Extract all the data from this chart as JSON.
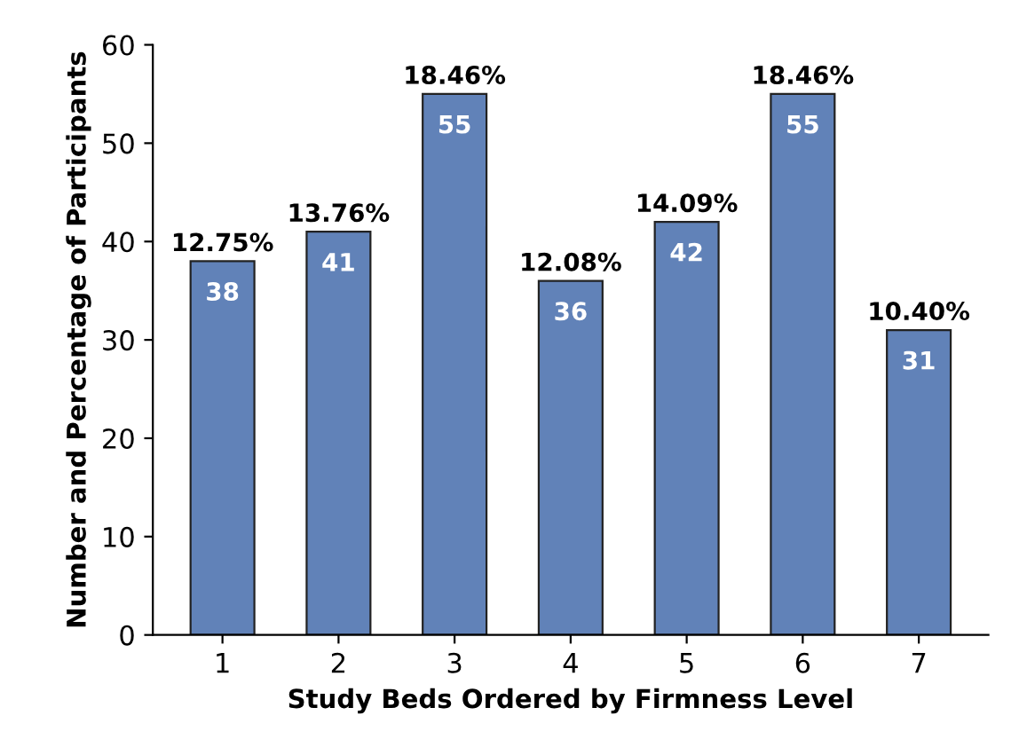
{
  "chart_data": {
    "type": "bar",
    "xlabel": "Study Beds Ordered by Firmness Level",
    "ylabel": "Number and Percentage of Participants",
    "categories": [
      "1",
      "2",
      "3",
      "4",
      "5",
      "6",
      "7"
    ],
    "values": [
      38,
      41,
      55,
      36,
      42,
      55,
      31
    ],
    "color": "#6182b8",
    "ylim": [
      0,
      60
    ],
    "yticks": [
      0,
      10,
      20,
      30,
      40,
      50,
      60
    ],
    "grid": false,
    "data_labels": true,
    "annotations": [
      {
        "text": "12.75%",
        "x": "1",
        "y": 38
      },
      {
        "text": "13.76%",
        "x": "2",
        "y": 41
      },
      {
        "text": "18.46%",
        "x": "3",
        "y": 55
      },
      {
        "text": "12.08%",
        "x": "4",
        "y": 36
      },
      {
        "text": "14.09%",
        "x": "5",
        "y": 42
      },
      {
        "text": "18.46%",
        "x": "6",
        "y": 55
      },
      {
        "text": "10.40%",
        "x": "7",
        "y": 31
      }
    ]
  }
}
